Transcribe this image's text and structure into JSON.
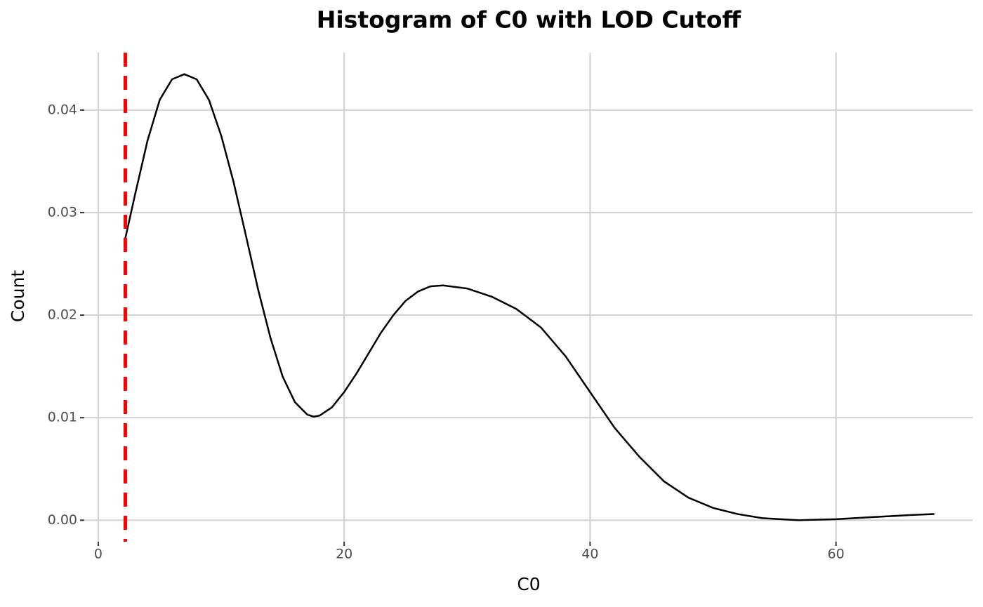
{
  "chart_data": {
    "type": "line",
    "title": "Histogram of C0 with LOD Cutoff",
    "x_label": "C0",
    "y_label": "Count",
    "x": [
      2.2,
      3,
      4,
      5,
      6,
      7,
      8,
      9,
      10,
      11,
      12,
      13,
      14,
      15,
      16,
      17,
      17.5,
      18,
      19,
      20,
      21,
      22,
      23,
      24,
      25,
      26,
      27,
      28,
      30,
      32,
      34,
      36,
      38,
      40,
      42,
      44,
      46,
      48,
      50,
      52,
      54,
      57,
      60,
      63,
      66,
      68
    ],
    "series": [
      {
        "color": "#000000",
        "values": [
          0.0275,
          0.0318,
          0.037,
          0.041,
          0.043,
          0.0435,
          0.043,
          0.041,
          0.0375,
          0.033,
          0.0278,
          0.0225,
          0.0178,
          0.014,
          0.0115,
          0.0103,
          0.0101,
          0.0102,
          0.011,
          0.0125,
          0.0143,
          0.0163,
          0.0183,
          0.02,
          0.0214,
          0.0223,
          0.0228,
          0.0229,
          0.0226,
          0.0218,
          0.0206,
          0.0188,
          0.016,
          0.0125,
          0.009,
          0.0062,
          0.0038,
          0.0022,
          0.0012,
          0.0006,
          0.0002,
          0.0,
          0.0001,
          0.0003,
          0.0005,
          0.0006
        ]
      }
    ],
    "lod_cutoff": 2.2,
    "lod_color": "#ff0000",
    "xlim": [
      -1.14,
      71.1
    ],
    "xticks": [
      0,
      20,
      40,
      60
    ],
    "ylim": [
      -0.0021,
      0.0456
    ],
    "yticks": [
      {
        "value": 0,
        "label": "0.00"
      },
      {
        "value": 0.01,
        "label": "0.01"
      },
      {
        "value": 0.02,
        "label": "0.02"
      },
      {
        "value": 0.03,
        "label": "0.03"
      },
      {
        "value": 0.04,
        "label": "0.04"
      }
    ],
    "grid": true
  }
}
